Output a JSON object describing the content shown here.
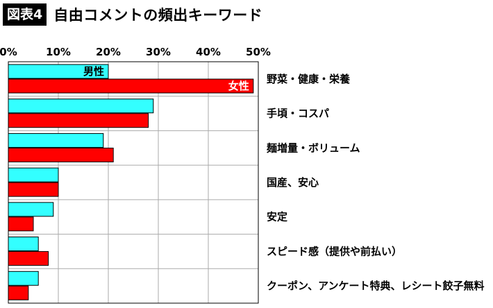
{
  "header": {
    "figure_label": "図表4",
    "title": "自由コメントの頻出キーワード"
  },
  "chart_data": {
    "type": "bar",
    "orientation": "horizontal",
    "xlim": [
      0,
      50
    ],
    "xticks": [
      0,
      10,
      20,
      30,
      40,
      50
    ],
    "tick_labels": [
      "0%",
      "10%",
      "20%",
      "30%",
      "40%",
      "50%"
    ],
    "grid": true,
    "categories": [
      "野菜・健康・栄養",
      "手頃・コスパ",
      "麺増量・ボリューム",
      "国産、安心",
      "安定",
      "スピード感（提供や前払い）",
      "クーポン、アンケート特典、レシート餃子無料"
    ],
    "series": [
      {
        "name": "男性",
        "color": "#33ffff",
        "values": [
          20,
          29,
          19,
          10,
          9,
          6,
          6
        ]
      },
      {
        "name": "女性",
        "color": "#ff0000",
        "values": [
          49,
          28,
          21,
          10,
          5,
          8,
          4
        ]
      }
    ]
  }
}
